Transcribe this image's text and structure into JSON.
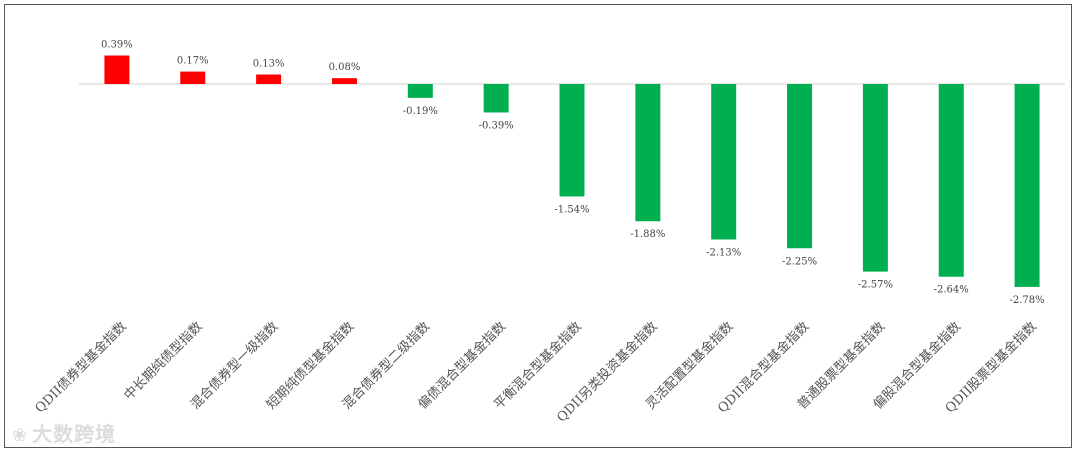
{
  "chart_data": {
    "type": "bar",
    "title": "",
    "xlabel": "",
    "ylabel": "",
    "unit": "%",
    "categories": [
      "QDII债券型基金指数",
      "中长期纯债型指数",
      "混合债券型一级指数",
      "短期纯债型基金指数",
      "混合债券型二级指数",
      "偏债混合型基金指数",
      "平衡混合型基金指数",
      "QDII另类投资基金指数",
      "灵活配置型基金指数",
      "QDII混合型基金指数",
      "普通股票型基金指数",
      "偏股混合型基金指数",
      "QDII股票型基金指数"
    ],
    "values": [
      0.39,
      0.17,
      0.13,
      0.08,
      -0.19,
      -0.39,
      -1.54,
      -1.88,
      -2.13,
      -2.25,
      -2.57,
      -2.64,
      -2.78
    ],
    "labels": [
      "0.39%",
      "0.17%",
      "0.13%",
      "0.08%",
      "-0.19%",
      "-0.39%",
      "-1.54%",
      "-1.88%",
      "-2.13%",
      "-2.25%",
      "-2.57%",
      "-2.64%",
      "-2.78%"
    ],
    "ylim": [
      -2.78,
      0.39
    ],
    "colors": {
      "positive": "#ff0000",
      "negative": "#00b050",
      "axis": "#d0d0d0"
    },
    "grid": false,
    "legend": "none"
  },
  "watermark": {
    "logo_icon": "dashuju-logo-icon",
    "text": "大数跨境"
  }
}
